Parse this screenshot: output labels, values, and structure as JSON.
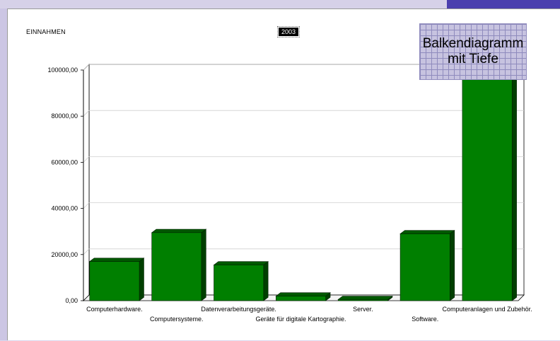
{
  "chart_title": "EINNAHMEN",
  "year": "2003",
  "overlay": {
    "line1": "Balkendiagramm",
    "line2": "mit Tiefe"
  },
  "colors": {
    "bar_front": "#007f00",
    "bar_top": "#005800",
    "bar_side": "#003f00",
    "overlay_bg": "#c7c3e0",
    "accent": "#4b3fae"
  },
  "chart_data": {
    "type": "bar",
    "title": "EINNAHMEN",
    "subtitle": "2003",
    "categories": [
      "Computerhardware.",
      "Computersysteme.",
      "Datenverarbeitungsgeräte.",
      "Geräte für digitale Kartographie.",
      "Server.",
      "Software.",
      "Computeranlagen und Zubehör."
    ],
    "values": [
      17000,
      29500,
      15500,
      2000,
      500,
      29000,
      96500
    ],
    "ylim": [
      0,
      100000
    ],
    "yticks": [
      "0,00",
      "20000,00",
      "40000,00",
      "60000,00",
      "80000,00",
      "100000,00"
    ],
    "ytick_values": [
      0,
      20000,
      40000,
      60000,
      80000,
      100000
    ],
    "grid": true,
    "bar_style": "3d-depth"
  }
}
